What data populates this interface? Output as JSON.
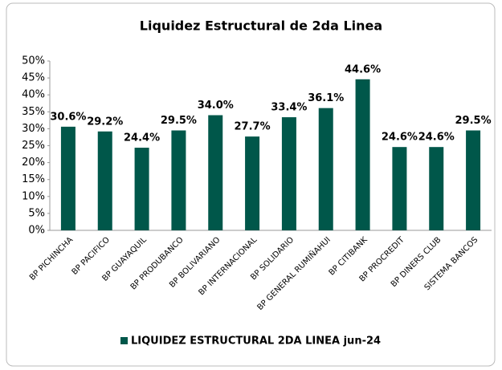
{
  "chart_data": {
    "type": "bar",
    "title": "Liquidez Estructural de 2da Linea",
    "categories": [
      "BP PICHINCHA",
      "BP PACIFICO",
      "BP GUAYAQUIL",
      "BP PRODUBANCO",
      "BP BOLIVARIANO",
      "BP INTERNACIONAL",
      "BP SOLIDARIO",
      "BP GENERAL RUMIÑAHUI",
      "BP CITIBANK",
      "BP PROCREDIT",
      "BP DINERS CLUB",
      "SISTEMA BANCOS"
    ],
    "series": [
      {
        "name": "LIQUIDEZ ESTRUCTURAL 2DA LINEA jun-24",
        "color": "#00574a",
        "values": [
          30.6,
          29.2,
          24.4,
          29.5,
          34.0,
          27.7,
          33.4,
          36.1,
          44.6,
          24.6,
          24.6,
          29.5
        ],
        "value_labels": [
          "30.6%",
          "29.2%",
          "24.4%",
          "29.5%",
          "34.0%",
          "27.7%",
          "33.4%",
          "36.1%",
          "44.6%",
          "24.6%",
          "24.6%",
          "29.5%"
        ]
      }
    ],
    "ylim": [
      0,
      50
    ],
    "yticks": [
      {
        "value": 0,
        "label": "0%"
      },
      {
        "value": 5,
        "label": "5%"
      },
      {
        "value": 10,
        "label": "10%"
      },
      {
        "value": 15,
        "label": "15%"
      },
      {
        "value": 20,
        "label": "20%"
      },
      {
        "value": 25,
        "label": "25%"
      },
      {
        "value": 30,
        "label": "30%"
      },
      {
        "value": 35,
        "label": "35%"
      },
      {
        "value": 40,
        "label": "40%"
      },
      {
        "value": 45,
        "label": "45%"
      },
      {
        "value": 50,
        "label": "50%"
      }
    ],
    "grid": false,
    "legend": "bottom"
  }
}
